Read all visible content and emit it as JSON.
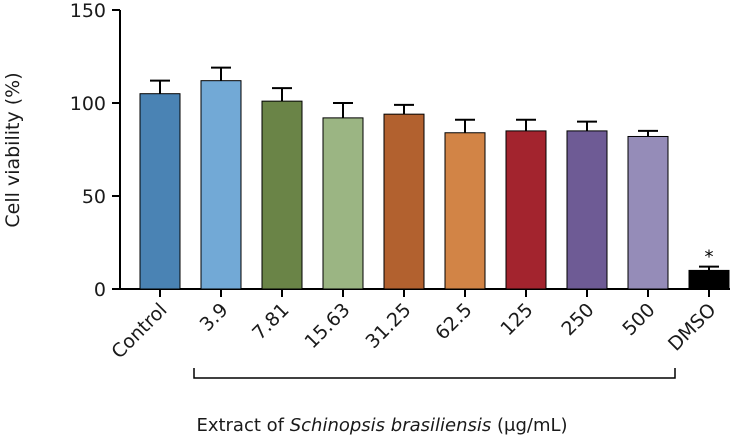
{
  "chart_data": {
    "type": "bar",
    "title": "",
    "ylabel": "Cell viability (%)",
    "xlabel": {
      "prefix": "Extract of ",
      "species": "Schinopsis brasiliensis",
      "suffix": " (μg/mL)"
    },
    "ylim": [
      0,
      150
    ],
    "yticks": [
      "0",
      "50",
      "100",
      "150"
    ],
    "grid": false,
    "categories": [
      "Control",
      "3.9",
      "7.81",
      "15.63",
      "31.25",
      "62.5",
      "125",
      "250",
      "500",
      "DMSO"
    ],
    "values": [
      105,
      112,
      101,
      92,
      94,
      84,
      85,
      85,
      82,
      10
    ],
    "errors": [
      7,
      7,
      7,
      8,
      5,
      7,
      6,
      5,
      3,
      2
    ],
    "colors": [
      "#4a83b4",
      "#72a9d6",
      "#6a8447",
      "#9bb583",
      "#b2612f",
      "#d28446",
      "#a3242e",
      "#6e5b95",
      "#958cb8",
      "#000000"
    ],
    "annotations": [
      {
        "category": "DMSO",
        "text": "*"
      }
    ],
    "bracket": {
      "from": "3.9",
      "to": "500"
    }
  }
}
